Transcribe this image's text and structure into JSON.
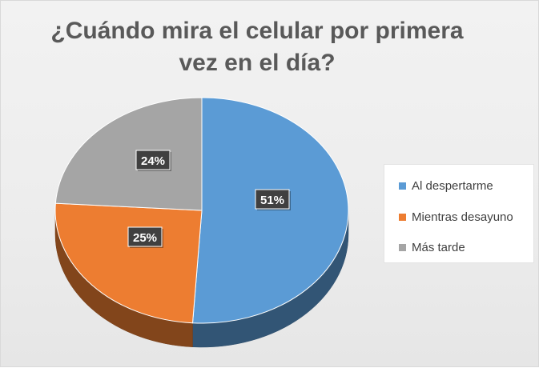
{
  "chart_data": {
    "type": "pie",
    "title": "¿Cuándo mira el celular por primera vez en el día?",
    "title_lines": [
      "¿Cuándo mira el celular por primera",
      "vez en el día?"
    ],
    "categories": [
      "Al despertarme",
      "Mientras desayuno",
      "Más tarde"
    ],
    "values": [
      51,
      25,
      24
    ],
    "data_labels": [
      "51%",
      "25%",
      "24%"
    ],
    "colors": [
      "#5b9bd5",
      "#ed7d31",
      "#a5a5a5"
    ],
    "legend_position": "right",
    "style": "3d"
  }
}
